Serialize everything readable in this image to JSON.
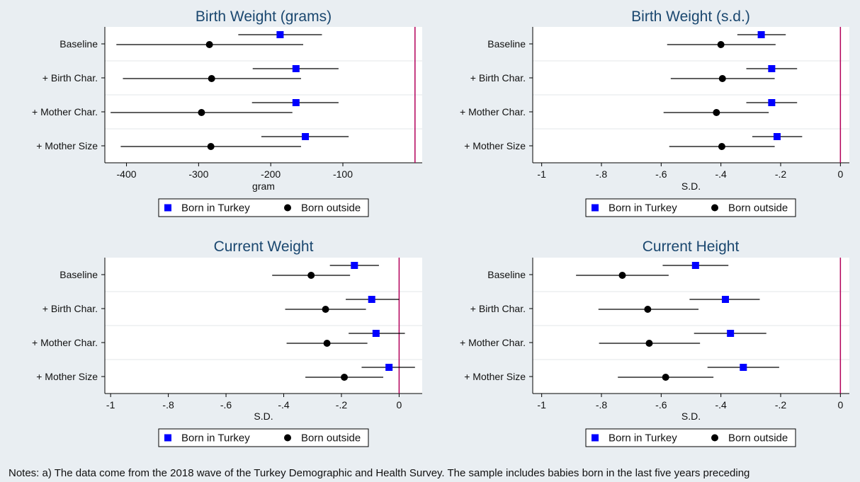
{
  "notes": "Notes: a) The data come from the 2018 wave of the Turkey Demographic and Health Survey. The sample includes babies born in the last five years preceding",
  "colors": {
    "series_a": "#0000ff",
    "series_b": "#000000",
    "reference_line": "#b3005a",
    "title": "#1a476f"
  },
  "chart_data": [
    {
      "type": "scatter",
      "title": "Birth Weight (grams)",
      "xlabel": "gram",
      "categories": [
        "Baseline",
        "+ Birth Char.",
        "+ Mother Char.",
        "+ Mother Size"
      ],
      "xlim": [
        -430,
        10
      ],
      "xticks": [
        -400,
        -300,
        -200,
        -100
      ],
      "xtick_labels": [
        "-400",
        "-300",
        "-200",
        "-100"
      ],
      "reference_x": 0,
      "legend": [
        "Born in Turkey",
        "Born outside"
      ],
      "series": [
        {
          "name": "Born in Turkey",
          "marker": "square",
          "values": [
            -187,
            -165,
            -165,
            -152
          ],
          "ci_low": [
            -245,
            -225,
            -226,
            -213
          ],
          "ci_high": [
            -129,
            -106,
            -106,
            -92
          ]
        },
        {
          "name": "Born outside",
          "marker": "circle",
          "values": [
            -285,
            -282,
            -296,
            -283
          ],
          "ci_low": [
            -414,
            -405,
            -422,
            -408
          ],
          "ci_high": [
            -155,
            -158,
            -170,
            -158
          ]
        }
      ]
    },
    {
      "type": "scatter",
      "title": "Birth Weight (s.d.)",
      "xlabel": "S.D.",
      "categories": [
        "Baseline",
        "+ Birth Char.",
        "+ Mother Char.",
        "+ Mother Size"
      ],
      "xlim": [
        -1.03,
        0.03
      ],
      "xticks": [
        -1,
        -0.8,
        -0.6,
        -0.4,
        -0.2,
        0
      ],
      "xtick_labels": [
        "-1",
        "-.8",
        "-.6",
        "-.4",
        "-.2",
        "0"
      ],
      "reference_x": 0,
      "legend": [
        "Born in Turkey",
        "Born outside"
      ],
      "series": [
        {
          "name": "Born in Turkey",
          "marker": "square",
          "values": [
            -0.265,
            -0.23,
            -0.23,
            -0.212
          ],
          "ci_low": [
            -0.345,
            -0.315,
            -0.315,
            -0.295
          ],
          "ci_high": [
            -0.183,
            -0.145,
            -0.145,
            -0.128
          ]
        },
        {
          "name": "Born outside",
          "marker": "circle",
          "values": [
            -0.4,
            -0.395,
            -0.415,
            -0.397
          ],
          "ci_low": [
            -0.58,
            -0.568,
            -0.592,
            -0.573
          ],
          "ci_high": [
            -0.217,
            -0.22,
            -0.24,
            -0.22
          ]
        }
      ]
    },
    {
      "type": "scatter",
      "title": "Current Weight",
      "xlabel": "S.D.",
      "categories": [
        "Baseline",
        "+ Birth Char.",
        "+ Mother Char.",
        "+ Mother Size"
      ],
      "xlim": [
        -1.02,
        0.08
      ],
      "xticks": [
        -1,
        -0.8,
        -0.6,
        -0.4,
        -0.2,
        0
      ],
      "xtick_labels": [
        "-1",
        "-.8",
        "-.6",
        "-.4",
        "-.2",
        "0"
      ],
      "reference_x": 0,
      "legend": [
        "Born in Turkey",
        "Born outside"
      ],
      "series": [
        {
          "name": "Born in Turkey",
          "marker": "square",
          "values": [
            -0.155,
            -0.095,
            -0.08,
            -0.035
          ],
          "ci_low": [
            -0.24,
            -0.185,
            -0.175,
            -0.13
          ],
          "ci_high": [
            -0.07,
            0.0,
            0.02,
            0.055
          ]
        },
        {
          "name": "Born outside",
          "marker": "circle",
          "values": [
            -0.305,
            -0.255,
            -0.25,
            -0.19
          ],
          "ci_low": [
            -0.44,
            -0.395,
            -0.39,
            -0.325
          ],
          "ci_high": [
            -0.17,
            -0.115,
            -0.11,
            -0.055
          ]
        }
      ]
    },
    {
      "type": "scatter",
      "title": "Current Height",
      "xlabel": "S.D.",
      "categories": [
        "Baseline",
        "+ Birth Char.",
        "+ Mother Char.",
        "+ Mother Size"
      ],
      "xlim": [
        -1.03,
        0.03
      ],
      "xticks": [
        -1,
        -0.8,
        -0.6,
        -0.4,
        -0.2,
        0
      ],
      "xtick_labels": [
        "-1",
        "-.8",
        "-.6",
        "-.4",
        "-.2",
        "0"
      ],
      "reference_x": 0,
      "legend": [
        "Born in Turkey",
        "Born outside"
      ],
      "series": [
        {
          "name": "Born in Turkey",
          "marker": "square",
          "values": [
            -0.485,
            -0.385,
            -0.368,
            -0.325
          ],
          "ci_low": [
            -0.595,
            -0.505,
            -0.49,
            -0.445
          ],
          "ci_high": [
            -0.375,
            -0.27,
            -0.248,
            -0.205
          ]
        },
        {
          "name": "Born outside",
          "marker": "circle",
          "values": [
            -0.73,
            -0.645,
            -0.64,
            -0.585
          ],
          "ci_low": [
            -0.885,
            -0.81,
            -0.808,
            -0.745
          ],
          "ci_high": [
            -0.575,
            -0.475,
            -0.47,
            -0.425
          ]
        }
      ]
    }
  ]
}
